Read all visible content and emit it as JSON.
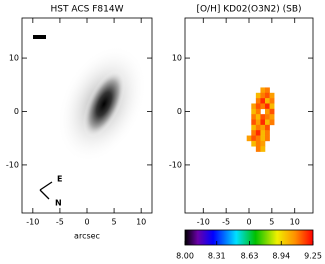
{
  "chart_data": [
    {
      "type": "image",
      "title": "HST ACS F814W",
      "xlabel": "arcsec",
      "xlim": [
        -12,
        12
      ],
      "ylim": [
        -19,
        17.5
      ],
      "xticks": [
        -10,
        -5,
        0,
        5,
        10
      ],
      "yticks": [
        -10,
        0,
        10
      ],
      "annotations": [
        "E",
        "N"
      ]
    },
    {
      "type": "heatmap",
      "title": "[O/H] KD02(O3N2)  (SB)",
      "xlim": [
        -14,
        14
      ],
      "ylim": [
        -19,
        17.5
      ],
      "xticks": [
        -10,
        -5,
        0,
        5,
        10
      ],
      "yticks": [
        -10,
        0,
        10
      ],
      "clim": [
        8,
        9.25
      ],
      "cticks": [
        {
          "value": 8,
          "label": "8.00"
        },
        {
          "value": 8.31,
          "label": "8.31"
        },
        {
          "value": 8.63,
          "label": "8.63"
        },
        {
          "value": 8.94,
          "label": "8.94"
        },
        {
          "value": 9.25,
          "label": "9.25"
        }
      ],
      "cells": [
        {
          "x": 3,
          "y": 4,
          "value": 9.05
        },
        {
          "x": 4,
          "y": 4,
          "value": 9.1
        },
        {
          "x": 2,
          "y": 3,
          "value": 9.0
        },
        {
          "x": 3,
          "y": 3,
          "value": 9.1
        },
        {
          "x": 4,
          "y": 3,
          "value": 9.15
        },
        {
          "x": 5,
          "y": 3,
          "value": 9.05
        },
        {
          "x": 2,
          "y": 2,
          "value": 9.1
        },
        {
          "x": 3,
          "y": 2,
          "value": 9.2
        },
        {
          "x": 4,
          "y": 2,
          "value": 9.0
        },
        {
          "x": 5,
          "y": 2,
          "value": 9.1
        },
        {
          "x": 1,
          "y": 1,
          "value": 9.05
        },
        {
          "x": 2,
          "y": 1,
          "value": 9.15
        },
        {
          "x": 3,
          "y": 1,
          "value": 9.1
        },
        {
          "x": 4,
          "y": 1,
          "value": 9.2
        },
        {
          "x": 5,
          "y": 1,
          "value": 9.0
        },
        {
          "x": 1,
          "y": 0,
          "value": 9.0
        },
        {
          "x": 2,
          "y": 0,
          "value": 9.1
        },
        {
          "x": 4,
          "y": 0,
          "value": 9.05
        },
        {
          "x": 5,
          "y": 0,
          "value": 9.15
        },
        {
          "x": 1,
          "y": -1,
          "value": 9.1
        },
        {
          "x": 2,
          "y": -1,
          "value": 9.0
        },
        {
          "x": 3,
          "y": -1,
          "value": 9.15
        },
        {
          "x": 4,
          "y": -1,
          "value": 9.1
        },
        {
          "x": 5,
          "y": -1,
          "value": 9.05
        },
        {
          "x": 1,
          "y": -2,
          "value": 9.15
        },
        {
          "x": 2,
          "y": -2,
          "value": 9.05
        },
        {
          "x": 3,
          "y": -2,
          "value": 9.2
        },
        {
          "x": 4,
          "y": -2,
          "value": 9.0
        },
        {
          "x": 5,
          "y": -2,
          "value": 9.1
        },
        {
          "x": 1,
          "y": -3,
          "value": 9.0
        },
        {
          "x": 2,
          "y": -3,
          "value": 9.1
        },
        {
          "x": 3,
          "y": -3,
          "value": 9.05
        },
        {
          "x": 4,
          "y": -3,
          "value": 9.15
        },
        {
          "x": 1,
          "y": -4,
          "value": 9.1
        },
        {
          "x": 2,
          "y": -4,
          "value": 9.2
        },
        {
          "x": 3,
          "y": -4,
          "value": 9.0
        },
        {
          "x": 4,
          "y": -4,
          "value": 9.1
        },
        {
          "x": 0,
          "y": -5,
          "value": 9.05
        },
        {
          "x": 1,
          "y": -5,
          "value": 9.15
        },
        {
          "x": 2,
          "y": -5,
          "value": 9.1
        },
        {
          "x": 3,
          "y": -5,
          "value": 9.0
        },
        {
          "x": 4,
          "y": -5,
          "value": 9.1
        },
        {
          "x": 1,
          "y": -6,
          "value": 9.0
        },
        {
          "x": 2,
          "y": -6,
          "value": 9.1
        },
        {
          "x": 3,
          "y": -6,
          "value": 9.05
        },
        {
          "x": 2,
          "y": -7,
          "value": 9.1
        },
        {
          "x": 3,
          "y": -7,
          "value": 9.0
        }
      ]
    }
  ]
}
